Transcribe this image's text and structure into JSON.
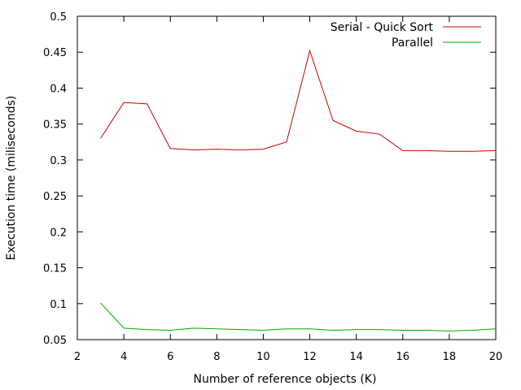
{
  "chart_data": {
    "type": "line",
    "title": "",
    "xlabel": "Number of reference objects (K)",
    "ylabel": "Execution time (miliseconds)",
    "xlim": [
      2,
      20
    ],
    "ylim": [
      0.05,
      0.5
    ],
    "xticks": [
      2,
      4,
      6,
      8,
      10,
      12,
      14,
      16,
      18,
      20
    ],
    "yticks": [
      0.05,
      0.1,
      0.15,
      0.2,
      0.25,
      0.3,
      0.35,
      0.4,
      0.45,
      0.5
    ],
    "xtick_labels": [
      "2",
      "4",
      "6",
      "8",
      "10",
      "12",
      "14",
      "16",
      "18",
      "20"
    ],
    "ytick_labels": [
      "0.05",
      "0.1",
      "0.15",
      "0.2",
      "0.25",
      "0.3",
      "0.35",
      "0.4",
      "0.45",
      "0.5"
    ],
    "x": [
      3,
      4,
      5,
      6,
      7,
      8,
      9,
      10,
      11,
      12,
      13,
      14,
      15,
      16,
      17,
      18,
      19,
      20
    ],
    "legend_position": "top-right",
    "grid": false,
    "series": [
      {
        "name": "Serial - Quick Sort",
        "color": "#cc0000",
        "values": [
          0.33,
          0.38,
          0.378,
          0.316,
          0.314,
          0.315,
          0.314,
          0.315,
          0.325,
          0.452,
          0.355,
          0.34,
          0.336,
          0.313,
          0.313,
          0.312,
          0.312,
          0.313
        ]
      },
      {
        "name": "Parallel",
        "color": "#00aa00",
        "values": [
          0.101,
          0.066,
          0.064,
          0.063,
          0.066,
          0.065,
          0.064,
          0.063,
          0.065,
          0.065,
          0.063,
          0.064,
          0.064,
          0.063,
          0.063,
          0.062,
          0.063,
          0.065
        ]
      }
    ]
  }
}
